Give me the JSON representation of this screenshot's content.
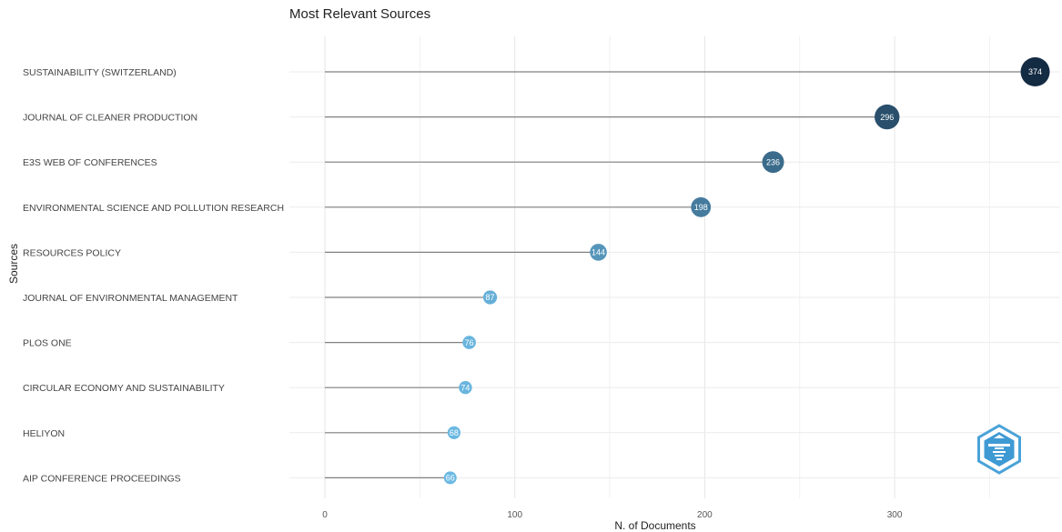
{
  "chart_data": {
    "type": "lollipop",
    "title": "Most Relevant Sources",
    "xlabel": "N. of Documents",
    "ylabel": "Sources",
    "xlim": [
      0,
      374
    ],
    "xticks": [
      0,
      100,
      200,
      300
    ],
    "grid": true,
    "categories": [
      "SUSTAINABILITY (SWITZERLAND)",
      "JOURNAL OF CLEANER PRODUCTION",
      "E3S WEB OF CONFERENCES",
      "ENVIRONMENTAL SCIENCE AND POLLUTION RESEARCH",
      "RESOURCES POLICY",
      "JOURNAL OF ENVIRONMENTAL MANAGEMENT",
      "PLOS ONE",
      "CIRCULAR ECONOMY AND SUSTAINABILITY",
      "HELIYON",
      "AIP CONFERENCE PROCEEDINGS"
    ],
    "values": [
      374,
      296,
      236,
      198,
      144,
      87,
      76,
      74,
      68,
      66
    ],
    "color_scale": {
      "low": "#6bb9e3",
      "high": "#132b43"
    }
  },
  "logo": {
    "icon": "bibliometrix-logo-icon"
  }
}
